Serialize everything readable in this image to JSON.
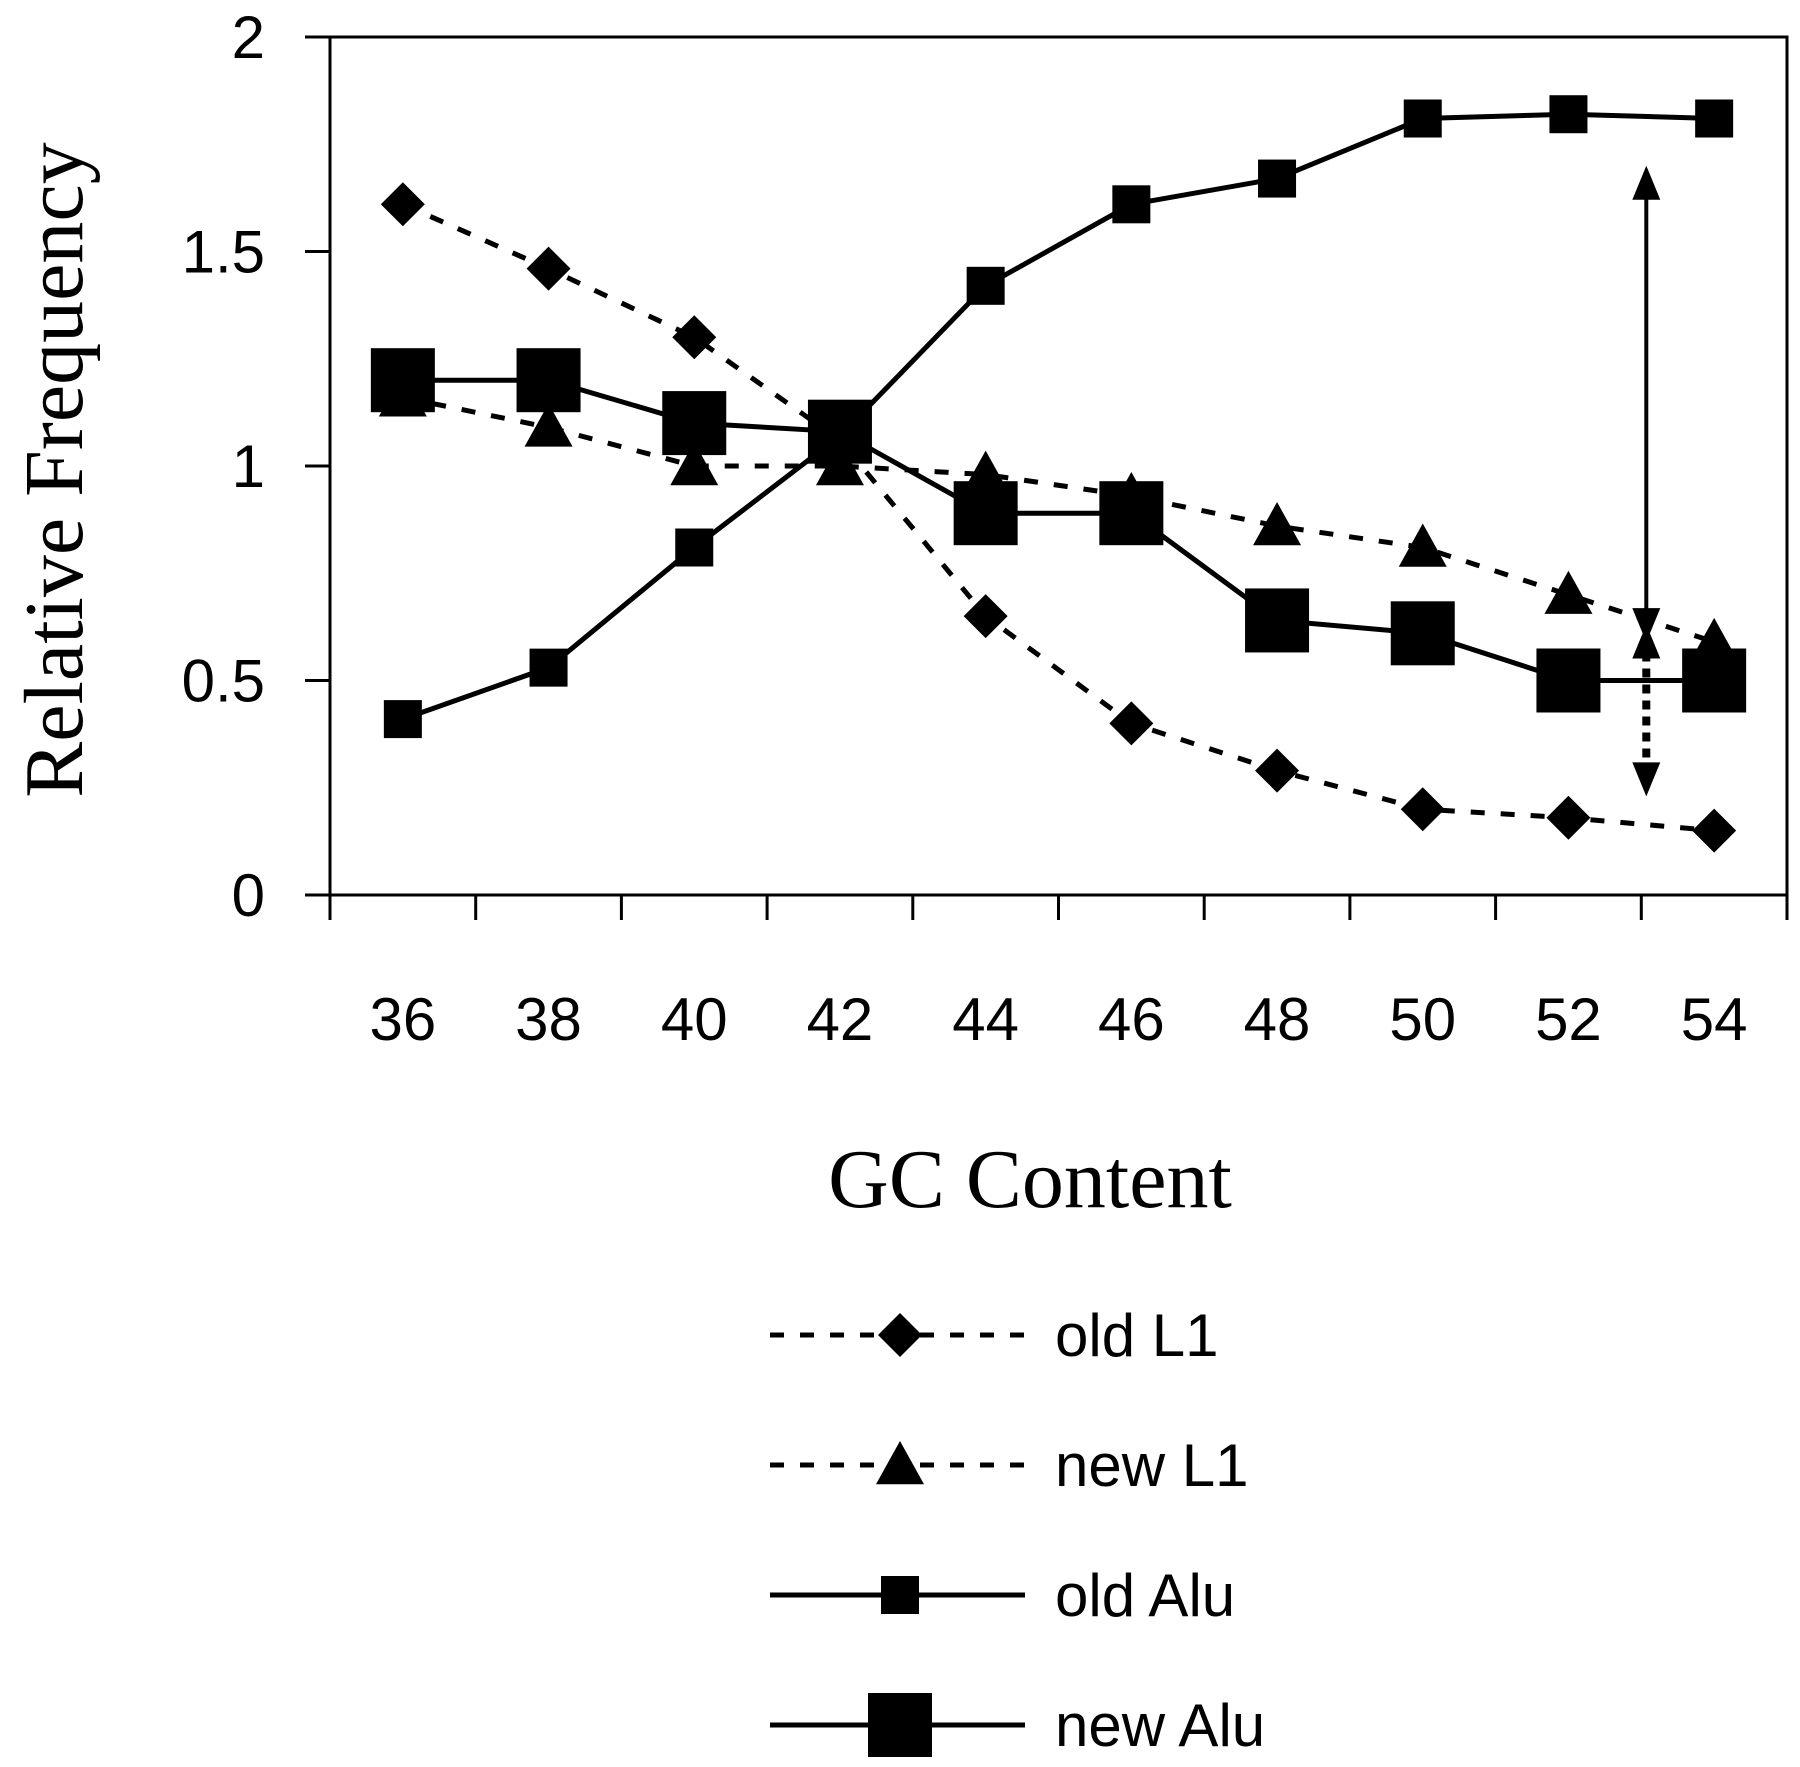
{
  "chart_data": {
    "type": "line",
    "title": "",
    "xlabel": "GC Content",
    "ylabel": "Relative Frequency",
    "x": [
      36,
      38,
      40,
      42,
      44,
      46,
      48,
      50,
      52,
      54
    ],
    "x_tick_labels": [
      "36",
      "38",
      "40",
      "42",
      "44",
      "46",
      "48",
      "50",
      "52",
      "54"
    ],
    "y_tick_labels": [
      "0",
      "0.5",
      "1",
      "1.5",
      "2"
    ],
    "xlim": [
      35,
      55
    ],
    "ylim": [
      0,
      2
    ],
    "grid": false,
    "legend_position": "bottom",
    "series": [
      {
        "name": "old L1",
        "line_style": "dotted",
        "marker": "diamond",
        "color": "#000000",
        "values": [
          1.61,
          1.46,
          1.3,
          1.06,
          0.65,
          0.4,
          0.29,
          0.2,
          0.18,
          0.15
        ]
      },
      {
        "name": "new L1",
        "line_style": "dotted",
        "marker": "triangle",
        "color": "#000000",
        "values": [
          1.16,
          1.09,
          1.0,
          1.0,
          0.98,
          0.93,
          0.86,
          0.81,
          0.7,
          0.59
        ]
      },
      {
        "name": "old Alu",
        "line_style": "solid",
        "marker": "square-small",
        "color": "#000000",
        "values": [
          0.41,
          0.53,
          0.81,
          1.07,
          1.42,
          1.61,
          1.67,
          1.81,
          1.82,
          1.81
        ]
      },
      {
        "name": "new Alu",
        "line_style": "solid",
        "marker": "square-large",
        "color": "#000000",
        "values": [
          1.2,
          1.2,
          1.1,
          1.08,
          0.89,
          0.89,
          0.64,
          0.61,
          0.5,
          0.5
        ]
      }
    ],
    "annotations": [
      {
        "type": "double-arrow-solid",
        "x": 53,
        "y_from": 0.58,
        "y_to": 1.7
      },
      {
        "type": "double-arrow-dotted",
        "x": 53,
        "y_from": 0.64,
        "y_to": 0.23
      }
    ]
  }
}
